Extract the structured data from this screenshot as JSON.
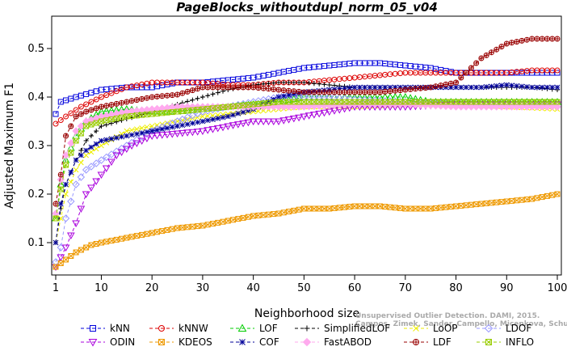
{
  "chart_data": {
    "type": "line",
    "title": "PageBlocks_withoutdupl_norm_05_v04",
    "xlabel": "Neighborhood size",
    "ylabel": "Adjusted Maximum F1",
    "xlim": [
      1,
      100
    ],
    "ylim": [
      0.05,
      0.55
    ],
    "xticks": [
      1,
      10,
      20,
      30,
      40,
      50,
      60,
      70,
      80,
      90,
      100
    ],
    "yticks": [
      0.1,
      0.2,
      0.3,
      0.4,
      0.5
    ],
    "grid": false,
    "legend_position": "bottom",
    "series": [
      {
        "name": "kNN",
        "color": "#0000dd",
        "marker": "square",
        "dash": "dash",
        "points": [
          [
            1,
            0.365
          ],
          [
            2,
            0.39
          ],
          [
            5,
            0.4
          ],
          [
            10,
            0.415
          ],
          [
            15,
            0.42
          ],
          [
            20,
            0.42
          ],
          [
            25,
            0.43
          ],
          [
            30,
            0.43
          ],
          [
            35,
            0.435
          ],
          [
            40,
            0.44
          ],
          [
            45,
            0.45
          ],
          [
            50,
            0.46
          ],
          [
            55,
            0.465
          ],
          [
            60,
            0.47
          ],
          [
            65,
            0.47
          ],
          [
            70,
            0.465
          ],
          [
            75,
            0.46
          ],
          [
            80,
            0.45
          ],
          [
            85,
            0.45
          ],
          [
            90,
            0.45
          ],
          [
            95,
            0.45
          ],
          [
            100,
            0.45
          ]
        ]
      },
      {
        "name": "kNNW",
        "color": "#dd0000",
        "marker": "circle",
        "dash": "dash",
        "points": [
          [
            1,
            0.345
          ],
          [
            3,
            0.36
          ],
          [
            6,
            0.38
          ],
          [
            10,
            0.4
          ],
          [
            15,
            0.42
          ],
          [
            20,
            0.43
          ],
          [
            25,
            0.43
          ],
          [
            30,
            0.43
          ],
          [
            35,
            0.425
          ],
          [
            40,
            0.425
          ],
          [
            45,
            0.43
          ],
          [
            50,
            0.43
          ],
          [
            55,
            0.435
          ],
          [
            60,
            0.44
          ],
          [
            65,
            0.445
          ],
          [
            70,
            0.45
          ],
          [
            75,
            0.45
          ],
          [
            80,
            0.45
          ],
          [
            85,
            0.45
          ],
          [
            90,
            0.45
          ],
          [
            95,
            0.455
          ],
          [
            100,
            0.455
          ]
        ]
      },
      {
        "name": "LOF",
        "color": "#00cc00",
        "marker": "triangle-up",
        "dash": "dash",
        "points": [
          [
            1,
            0.15
          ],
          [
            2,
            0.22
          ],
          [
            3,
            0.27
          ],
          [
            5,
            0.32
          ],
          [
            7,
            0.35
          ],
          [
            10,
            0.37
          ],
          [
            15,
            0.375
          ],
          [
            20,
            0.37
          ],
          [
            25,
            0.37
          ],
          [
            30,
            0.375
          ],
          [
            35,
            0.38
          ],
          [
            40,
            0.385
          ],
          [
            45,
            0.39
          ],
          [
            50,
            0.4
          ],
          [
            55,
            0.4
          ],
          [
            60,
            0.4
          ],
          [
            65,
            0.4
          ],
          [
            70,
            0.4
          ],
          [
            75,
            0.39
          ],
          [
            80,
            0.39
          ],
          [
            85,
            0.39
          ],
          [
            90,
            0.39
          ],
          [
            95,
            0.39
          ],
          [
            100,
            0.39
          ]
        ]
      },
      {
        "name": "SimplifiedLOF",
        "color": "#000000",
        "marker": "plus",
        "dash": "dash",
        "points": [
          [
            1,
            0.1
          ],
          [
            2,
            0.17
          ],
          [
            3,
            0.22
          ],
          [
            5,
            0.27
          ],
          [
            7,
            0.31
          ],
          [
            10,
            0.34
          ],
          [
            15,
            0.355
          ],
          [
            20,
            0.37
          ],
          [
            25,
            0.385
          ],
          [
            30,
            0.4
          ],
          [
            35,
            0.415
          ],
          [
            40,
            0.425
          ],
          [
            45,
            0.43
          ],
          [
            50,
            0.43
          ],
          [
            55,
            0.425
          ],
          [
            60,
            0.42
          ],
          [
            65,
            0.42
          ],
          [
            70,
            0.42
          ],
          [
            75,
            0.42
          ],
          [
            80,
            0.42
          ],
          [
            85,
            0.42
          ],
          [
            90,
            0.42
          ],
          [
            95,
            0.42
          ],
          [
            100,
            0.415
          ]
        ]
      },
      {
        "name": "LoOP",
        "color": "#eeee00",
        "marker": "x",
        "dash": "dash",
        "points": [
          [
            1,
            0.1
          ],
          [
            2,
            0.15
          ],
          [
            3,
            0.2
          ],
          [
            5,
            0.25
          ],
          [
            7,
            0.28
          ],
          [
            10,
            0.3
          ],
          [
            15,
            0.33
          ],
          [
            20,
            0.34
          ],
          [
            25,
            0.35
          ],
          [
            30,
            0.36
          ],
          [
            35,
            0.365
          ],
          [
            40,
            0.37
          ],
          [
            45,
            0.375
          ],
          [
            50,
            0.38
          ],
          [
            55,
            0.38
          ],
          [
            60,
            0.38
          ],
          [
            70,
            0.385
          ],
          [
            80,
            0.385
          ],
          [
            90,
            0.38
          ],
          [
            100,
            0.375
          ]
        ]
      },
      {
        "name": "LDOF",
        "color": "#9999ff",
        "marker": "diamond",
        "dash": "dash",
        "points": [
          [
            1,
            0.06
          ],
          [
            2,
            0.09
          ],
          [
            3,
            0.15
          ],
          [
            5,
            0.22
          ],
          [
            7,
            0.25
          ],
          [
            10,
            0.27
          ],
          [
            15,
            0.3
          ],
          [
            20,
            0.33
          ],
          [
            25,
            0.35
          ],
          [
            30,
            0.37
          ],
          [
            35,
            0.38
          ],
          [
            40,
            0.39
          ],
          [
            45,
            0.4
          ],
          [
            50,
            0.4
          ],
          [
            55,
            0.4
          ],
          [
            60,
            0.395
          ],
          [
            70,
            0.39
          ],
          [
            80,
            0.385
          ],
          [
            90,
            0.385
          ],
          [
            100,
            0.38
          ]
        ]
      },
      {
        "name": "ODIN",
        "color": "#aa00dd",
        "marker": "triangle-down",
        "dash": "dash",
        "points": [
          [
            1,
            0.05
          ],
          [
            3,
            0.09
          ],
          [
            5,
            0.14
          ],
          [
            7,
            0.2
          ],
          [
            10,
            0.24
          ],
          [
            13,
            0.28
          ],
          [
            16,
            0.3
          ],
          [
            20,
            0.32
          ],
          [
            25,
            0.325
          ],
          [
            30,
            0.33
          ],
          [
            35,
            0.34
          ],
          [
            40,
            0.35
          ],
          [
            45,
            0.35
          ],
          [
            50,
            0.36
          ],
          [
            55,
            0.37
          ],
          [
            60,
            0.38
          ],
          [
            70,
            0.38
          ],
          [
            80,
            0.385
          ],
          [
            90,
            0.385
          ],
          [
            100,
            0.385
          ]
        ]
      },
      {
        "name": "KDEOS",
        "color": "#ee9900",
        "marker": "square-x",
        "dash": "dash",
        "points": [
          [
            1,
            0.05
          ],
          [
            3,
            0.065
          ],
          [
            5,
            0.08
          ],
          [
            8,
            0.095
          ],
          [
            10,
            0.1
          ],
          [
            15,
            0.11
          ],
          [
            20,
            0.12
          ],
          [
            25,
            0.13
          ],
          [
            30,
            0.135
          ],
          [
            35,
            0.145
          ],
          [
            40,
            0.155
          ],
          [
            45,
            0.16
          ],
          [
            50,
            0.17
          ],
          [
            55,
            0.17
          ],
          [
            60,
            0.175
          ],
          [
            65,
            0.175
          ],
          [
            70,
            0.17
          ],
          [
            75,
            0.17
          ],
          [
            80,
            0.175
          ],
          [
            85,
            0.18
          ],
          [
            90,
            0.185
          ],
          [
            95,
            0.19
          ],
          [
            100,
            0.2
          ]
        ]
      },
      {
        "name": "COF",
        "color": "#000099",
        "marker": "star",
        "dash": "dash",
        "points": [
          [
            1,
            0.1
          ],
          [
            2,
            0.18
          ],
          [
            3,
            0.22
          ],
          [
            5,
            0.27
          ],
          [
            7,
            0.29
          ],
          [
            10,
            0.31
          ],
          [
            15,
            0.32
          ],
          [
            20,
            0.33
          ],
          [
            25,
            0.34
          ],
          [
            30,
            0.35
          ],
          [
            35,
            0.36
          ],
          [
            40,
            0.375
          ],
          [
            45,
            0.4
          ],
          [
            50,
            0.41
          ],
          [
            55,
            0.415
          ],
          [
            60,
            0.42
          ],
          [
            65,
            0.42
          ],
          [
            70,
            0.42
          ],
          [
            75,
            0.42
          ],
          [
            80,
            0.42
          ],
          [
            85,
            0.42
          ],
          [
            90,
            0.425
          ],
          [
            95,
            0.42
          ],
          [
            100,
            0.42
          ]
        ]
      },
      {
        "name": "FastABOD",
        "color": "#ffaaee",
        "marker": "diamond-filled",
        "dash": "dash",
        "points": [
          [
            1,
            0.16
          ],
          [
            2,
            0.23
          ],
          [
            3,
            0.28
          ],
          [
            5,
            0.33
          ],
          [
            7,
            0.35
          ],
          [
            10,
            0.36
          ],
          [
            15,
            0.37
          ],
          [
            20,
            0.375
          ],
          [
            25,
            0.38
          ],
          [
            30,
            0.38
          ],
          [
            35,
            0.38
          ],
          [
            40,
            0.38
          ],
          [
            50,
            0.38
          ],
          [
            60,
            0.385
          ],
          [
            70,
            0.385
          ],
          [
            80,
            0.38
          ],
          [
            90,
            0.38
          ],
          [
            100,
            0.38
          ]
        ]
      },
      {
        "name": "LDF",
        "color": "#990000",
        "marker": "circle-plus",
        "dash": "dash",
        "points": [
          [
            1,
            0.18
          ],
          [
            2,
            0.24
          ],
          [
            3,
            0.32
          ],
          [
            5,
            0.36
          ],
          [
            7,
            0.37
          ],
          [
            10,
            0.38
          ],
          [
            15,
            0.39
          ],
          [
            20,
            0.4
          ],
          [
            25,
            0.405
          ],
          [
            30,
            0.42
          ],
          [
            35,
            0.42
          ],
          [
            40,
            0.42
          ],
          [
            45,
            0.415
          ],
          [
            50,
            0.41
          ],
          [
            55,
            0.41
          ],
          [
            60,
            0.41
          ],
          [
            65,
            0.41
          ],
          [
            70,
            0.415
          ],
          [
            75,
            0.42
          ],
          [
            80,
            0.43
          ],
          [
            85,
            0.48
          ],
          [
            90,
            0.51
          ],
          [
            95,
            0.52
          ],
          [
            100,
            0.52
          ]
        ]
      },
      {
        "name": "INFLO",
        "color": "#99cc00",
        "marker": "square-x",
        "dash": "dash",
        "points": [
          [
            1,
            0.15
          ],
          [
            2,
            0.21
          ],
          [
            3,
            0.26
          ],
          [
            5,
            0.31
          ],
          [
            7,
            0.34
          ],
          [
            10,
            0.35
          ],
          [
            15,
            0.36
          ],
          [
            20,
            0.365
          ],
          [
            25,
            0.37
          ],
          [
            30,
            0.375
          ],
          [
            35,
            0.38
          ],
          [
            40,
            0.385
          ],
          [
            45,
            0.39
          ],
          [
            50,
            0.39
          ],
          [
            55,
            0.39
          ],
          [
            60,
            0.39
          ],
          [
            70,
            0.39
          ],
          [
            80,
            0.39
          ],
          [
            90,
            0.39
          ],
          [
            100,
            0.39
          ]
        ]
      }
    ]
  },
  "watermark": {
    "line1": "Unsupervised Outlier Detection. DAMI, 2015.",
    "line2": "Campos, Zimek, Sander, Campello, Micenkova, Schubert, Assent, Houle"
  }
}
